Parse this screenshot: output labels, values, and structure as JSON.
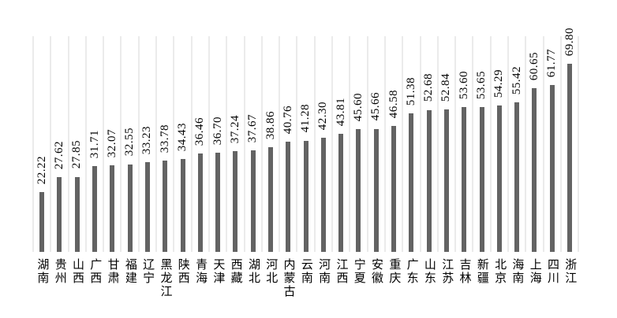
{
  "chart_data": {
    "type": "bar",
    "title": "",
    "xlabel": "",
    "ylabel": "",
    "ylim": [
      0,
      80
    ],
    "grid": "vertical-category-boundary-lines",
    "legend": "none",
    "bar_orientation": "vertical",
    "value_label_rotation": "90deg-read-bottom-to-top",
    "category_label_orientation": "stacked-upright-vertical",
    "categories": [
      "湖南",
      "贵州",
      "山西",
      "广西",
      "甘肃",
      "福建",
      "辽宁",
      "黑龙江",
      "陕西",
      "青海",
      "天津",
      "西藏",
      "湖北",
      "河北",
      "内蒙古",
      "云南",
      "河南",
      "江西",
      "宁夏",
      "安徽",
      "重庆",
      "广东",
      "山东",
      "江苏",
      "吉林",
      "新疆",
      "北京",
      "海南",
      "上海",
      "四川",
      "浙江"
    ],
    "values": [
      22.22,
      27.62,
      27.85,
      31.71,
      32.07,
      32.55,
      33.23,
      33.78,
      34.43,
      36.46,
      36.7,
      37.24,
      37.67,
      38.86,
      40.76,
      41.28,
      42.3,
      43.81,
      45.6,
      45.66,
      46.58,
      51.38,
      52.68,
      52.84,
      53.6,
      53.65,
      54.29,
      55.42,
      60.65,
      61.77,
      69.8
    ],
    "value_labels": [
      "22.22",
      "27.62",
      "27.85",
      "31.71",
      "32.07",
      "32.55",
      "33.23",
      "33.78",
      "34.43",
      "36.46",
      "36.70",
      "37.24",
      "37.67",
      "38.86",
      "40.76",
      "41.28",
      "42.30",
      "43.81",
      "45.60",
      "45.66",
      "46.58",
      "51.38",
      "52.68",
      "52.84",
      "53.60",
      "53.65",
      "54.29",
      "55.42",
      "60.65",
      "61.77",
      "69.80"
    ]
  },
  "colors": {
    "bar": "#636363",
    "gridline": "#ebebeb",
    "text": "#000000",
    "background": "#ffffff"
  }
}
